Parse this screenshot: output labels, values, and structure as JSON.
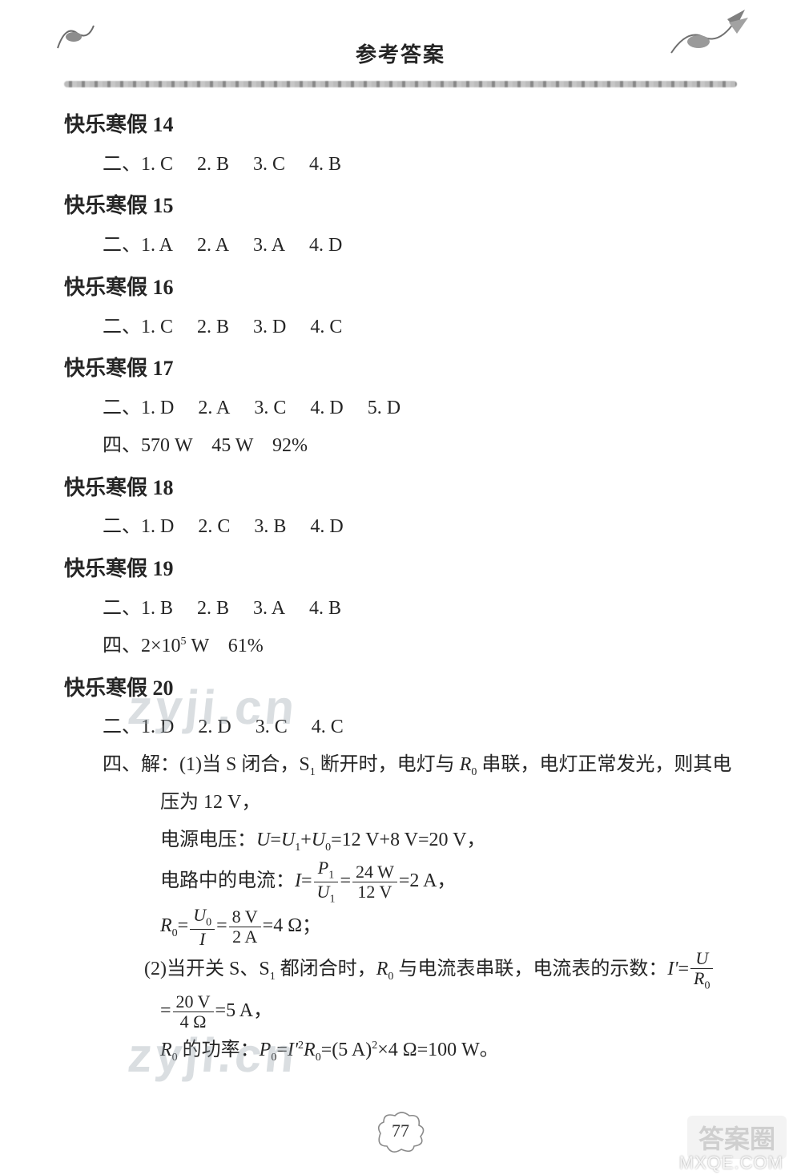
{
  "header": {
    "title": "参考答案"
  },
  "page_number": "77",
  "watermark_text": "zyji.cn",
  "corner": {
    "badge": "答案圈",
    "url": "MXQE.COM"
  },
  "colors": {
    "text": "#252525",
    "background": "#ffffff",
    "rule": "#9a9a9a",
    "watermark": "rgba(150,160,170,0.35)"
  },
  "sections": [
    {
      "title": "快乐寒假 14",
      "lines": [
        {
          "type": "items",
          "prefix": "二、",
          "items": [
            "1. C",
            "2. B",
            "3. C",
            "4. B"
          ]
        }
      ]
    },
    {
      "title": "快乐寒假 15",
      "lines": [
        {
          "type": "items",
          "prefix": "二、",
          "items": [
            "1. A",
            "2. A",
            "3. A",
            "4. D"
          ]
        }
      ]
    },
    {
      "title": "快乐寒假 16",
      "lines": [
        {
          "type": "items",
          "prefix": "二、",
          "items": [
            "1. C",
            "2. B",
            "3. D",
            "4. C"
          ]
        }
      ]
    },
    {
      "title": "快乐寒假 17",
      "lines": [
        {
          "type": "items",
          "prefix": "二、",
          "items": [
            "1. D",
            "2. A",
            "3. C",
            "4. D",
            "5. D"
          ]
        },
        {
          "type": "plain",
          "prefix": "四、",
          "text": "570 W　45 W　92%"
        }
      ]
    },
    {
      "title": "快乐寒假 18",
      "lines": [
        {
          "type": "items",
          "prefix": "二、",
          "items": [
            "1. D",
            "2. C",
            "3. B",
            "4. D"
          ]
        }
      ]
    },
    {
      "title": "快乐寒假 19",
      "lines": [
        {
          "type": "items",
          "prefix": "二、",
          "items": [
            "1. B",
            "2. B",
            "3. A",
            "4. B"
          ]
        },
        {
          "type": "plain",
          "prefix": "四、",
          "text_html": "2×10<span class='sup'>5</span> W　61%"
        }
      ]
    },
    {
      "title": "快乐寒假 20",
      "lines": [
        {
          "type": "items",
          "prefix": "二、",
          "items": [
            "1. D",
            "2. D",
            "3. C",
            "4. C"
          ]
        },
        {
          "type": "solve",
          "prefix": "四、解：",
          "text_html": "(1)当 S 闭合，S<span class='sub'>1</span> 断开时，电灯与 <span class='italic'>R</span><span class='sub'>0</span> 串联，电灯正常发光，则其电"
        },
        {
          "type": "cont",
          "text_html": "压为 12 V，"
        },
        {
          "type": "cont",
          "text_html": "电源电压：<span class='italic'>U</span>=<span class='italic'>U</span><span class='sub'>1</span>+<span class='italic'>U</span><span class='sub'>0</span>=12 V+8 V=20 V，"
        },
        {
          "type": "cont",
          "text_html": "电路中的电流：<span class='italic'>I</span>=<span class='frac'><span class='num'><span class='italic'>P</span><span class='sub'>1</span></span><span class='den'><span class='italic'>U</span><span class='sub'>1</span></span></span>=<span class='frac'><span class='num'>24 W</span><span class='den'>12 V</span></span>=2 A，"
        },
        {
          "type": "cont",
          "text_html": "<span class='italic'>R</span><span class='sub'>0</span>=<span class='frac'><span class='num'><span class='italic'>U</span><span class='sub'>0</span></span><span class='den'><span class='italic'>I</span></span></span>=<span class='frac'><span class='num'>8 V</span><span class='den'>2 A</span></span>=4 Ω；"
        },
        {
          "type": "solve2",
          "text_html": "(2)当开关 S、S<span class='sub'>1</span> 都闭合时，<span class='italic'>R</span><span class='sub'>0</span> 与电流表串联，电流表的示数：<span class='italic'>I'</span>=<span class='frac'><span class='num'><span class='italic'>U</span></span><span class='den'><span class='italic'>R</span><span class='sub'>0</span></span></span>"
        },
        {
          "type": "cont",
          "text_html": "=<span class='frac'><span class='num'>20 V</span><span class='den'>4 Ω</span></span>=5 A，"
        },
        {
          "type": "cont",
          "text_html": "<span class='italic'>R</span><span class='sub'>0</span> 的功率：<span class='italic'>P</span><span class='sub'>0</span>=<span class='italic'>I'</span><span class='sup'>2</span><span class='italic'>R</span><span class='sub'>0</span>=(5 A)<span class='sup'>2</span>×4 Ω=100 W。"
        }
      ]
    }
  ]
}
